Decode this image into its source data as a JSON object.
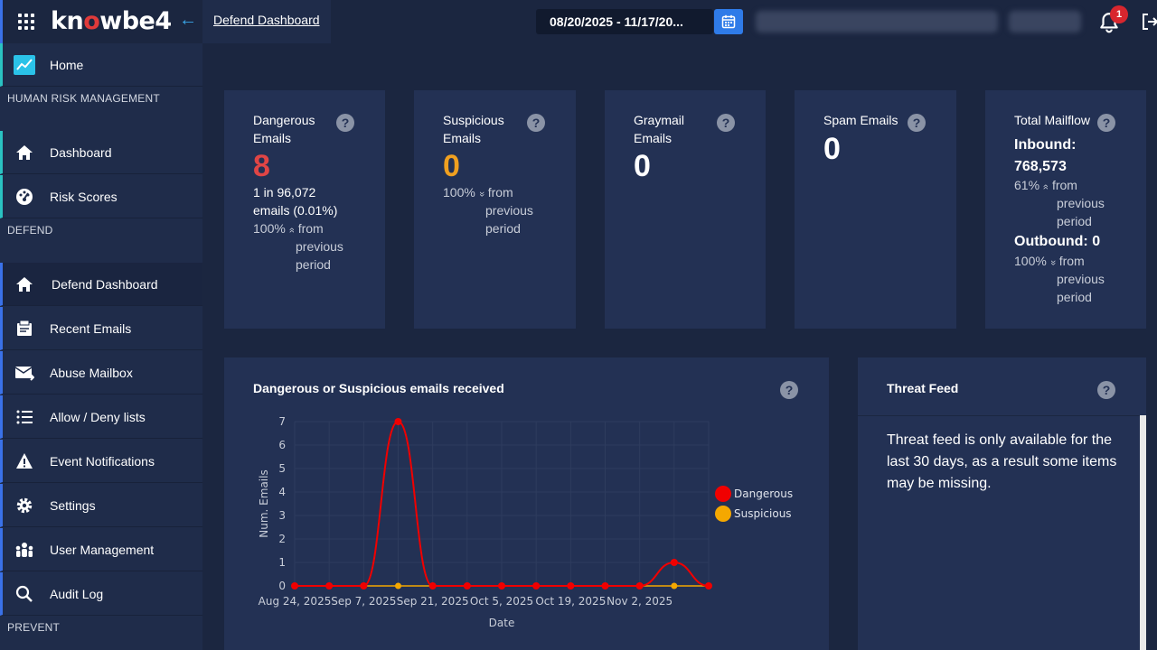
{
  "header": {
    "logo_prefix": "kn",
    "logo_o": "o",
    "logo_suffix": "wbe4",
    "breadcrumb": "Defend Dashboard",
    "date_range": "08/20/2025 - 11/17/20...",
    "notification_count": "1"
  },
  "sidebar": {
    "home": "Home",
    "section_hrm": "HUMAN RISK MANAGEMENT",
    "dashboard": "Dashboard",
    "risk_scores": "Risk Scores",
    "section_defend": "DEFEND",
    "defend_dashboard": "Defend Dashboard",
    "recent_emails": "Recent Emails",
    "abuse_mailbox": "Abuse Mailbox",
    "allow_deny": "Allow / Deny lists",
    "event_notifications": "Event Notifications",
    "settings": "Settings",
    "user_management": "User Management",
    "audit_log": "Audit Log",
    "section_prevent": "PREVENT"
  },
  "cards": {
    "dangerous": {
      "title_line1": "Dangerous",
      "title_line2": "Emails",
      "value": "8",
      "ratio_line1": "1 in 96,072",
      "ratio_line2": "emails (0.01%)",
      "change_pct": "100%",
      "change_arrow": "»",
      "change_line1": "from",
      "change_line2": "previous",
      "change_line3": "period"
    },
    "suspicious": {
      "title_line1": "Suspicious",
      "title_line2": "Emails",
      "value": "0",
      "change_pct": "100%",
      "change_arrow": "»",
      "change_line1": "from",
      "change_line2": "previous",
      "change_line3": "period"
    },
    "graymail": {
      "title_line1": "Graymail",
      "title_line2": "Emails",
      "value": "0"
    },
    "spam": {
      "title": "Spam Emails",
      "value": "0"
    },
    "mailflow": {
      "title": "Total Mailflow",
      "inbound_label": "Inbound:",
      "inbound_value": "768,573",
      "inbound_pct": "61%",
      "inbound_arrow": "»",
      "inbound_line1": "from",
      "inbound_line2": "previous",
      "inbound_line3": "period",
      "outbound_label": "Outbound: 0",
      "outbound_pct": "100%",
      "outbound_arrow": "»",
      "outbound_line1": "from",
      "outbound_line2": "previous",
      "outbound_line3": "period"
    }
  },
  "threat_feed": {
    "title": "Threat Feed",
    "message": "Threat feed is only available for the last 30 days, as a result some items may be missing."
  },
  "colors": {
    "dangerous": "#f00000",
    "suspicious": "#f5a800",
    "dangerous_value": "#e04545",
    "suspicious_value": "#f0a020"
  },
  "chart_data": {
    "type": "line",
    "title": "Dangerous or Suspicious emails received",
    "xlabel": "Date",
    "ylabel": "Num. Emails",
    "ylim": [
      0,
      7
    ],
    "yticks": [
      0,
      1,
      2,
      3,
      4,
      5,
      6,
      7
    ],
    "x": [
      "2025-08-24",
      "2025-08-31",
      "2025-09-07",
      "2025-09-14",
      "2025-09-21",
      "2025-09-28",
      "2025-10-05",
      "2025-10-12",
      "2025-10-19",
      "2025-10-26",
      "2025-11-02",
      "2025-11-09",
      "2025-11-16"
    ],
    "xtick_labels": [
      "Aug 24, 2025",
      "Sep 7, 2025",
      "Sep 21, 2025",
      "Oct 5, 2025",
      "Oct 19, 2025",
      "Nov 2, 2025"
    ],
    "legend": "right",
    "series": [
      {
        "name": "Dangerous",
        "values": [
          0,
          0,
          0,
          7,
          0,
          0,
          0,
          0,
          0,
          0,
          0,
          1,
          0
        ],
        "marker_every": 1
      },
      {
        "name": "Suspicious",
        "values": [
          0,
          0,
          0,
          0,
          0,
          0,
          0,
          0,
          0,
          0,
          0,
          0,
          0
        ]
      }
    ],
    "grid": true
  }
}
